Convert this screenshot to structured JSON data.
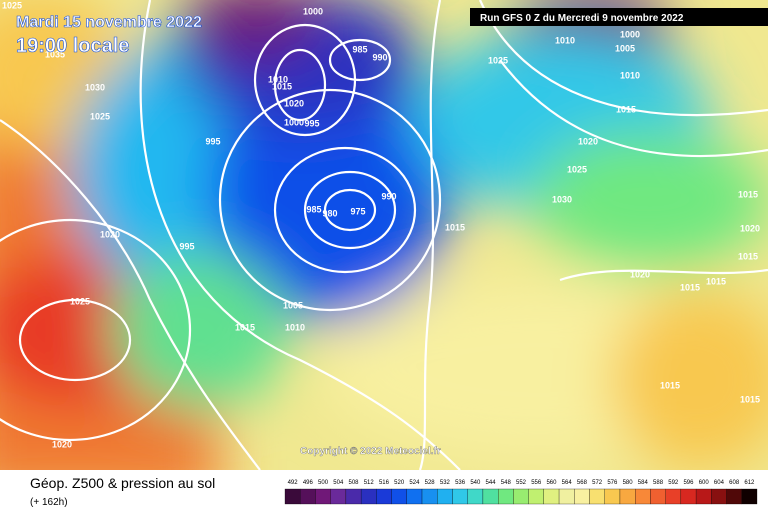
{
  "header": {
    "date": "Mardi 15 novembre 2022",
    "time": "19:00 locale",
    "run": "Run GFS 0 Z du Mercredi 9 novembre 2022",
    "copyright": "Copyright © 2022 Meteociel.fr"
  },
  "footer": {
    "title": "Géop. Z500 & pression au sol",
    "lead": "(+ 162h)"
  },
  "isobar_labels": [
    1025,
    1035,
    1030,
    1025,
    995,
    1020,
    995,
    1025,
    1020,
    1005,
    1015,
    1010,
    1000,
    985,
    990,
    1010,
    1015,
    1020,
    1000,
    995,
    990,
    985,
    980,
    975,
    1015,
    1025,
    1010,
    1005,
    1000,
    1010,
    1015,
    1020,
    1025,
    1030,
    1020,
    1015,
    1015,
    1015,
    1020,
    1015,
    1015,
    1015
  ],
  "legend": {
    "values": [
      492,
      496,
      500,
      504,
      508,
      512,
      516,
      520,
      524,
      528,
      532,
      536,
      540,
      544,
      548,
      552,
      556,
      560,
      564,
      568,
      572,
      576,
      580,
      584,
      588,
      592,
      596,
      600,
      604,
      608,
      612
    ],
    "colors": [
      "#3a0a3a",
      "#55105a",
      "#701878",
      "#6a2a9a",
      "#4a2aaa",
      "#2a30c0",
      "#1a3ad8",
      "#1050e8",
      "#1070f0",
      "#1890f0",
      "#20b0f0",
      "#30c8e8",
      "#40d8c8",
      "#50e0a0",
      "#70e880",
      "#98ec70",
      "#c0f070",
      "#e0f080",
      "#f0f0a0",
      "#f8f0a0",
      "#f8e070",
      "#f8c850",
      "#f8a840",
      "#f88838",
      "#f06030",
      "#e84028",
      "#d82820",
      "#b81818",
      "#881010",
      "#500808",
      "#100000"
    ]
  }
}
